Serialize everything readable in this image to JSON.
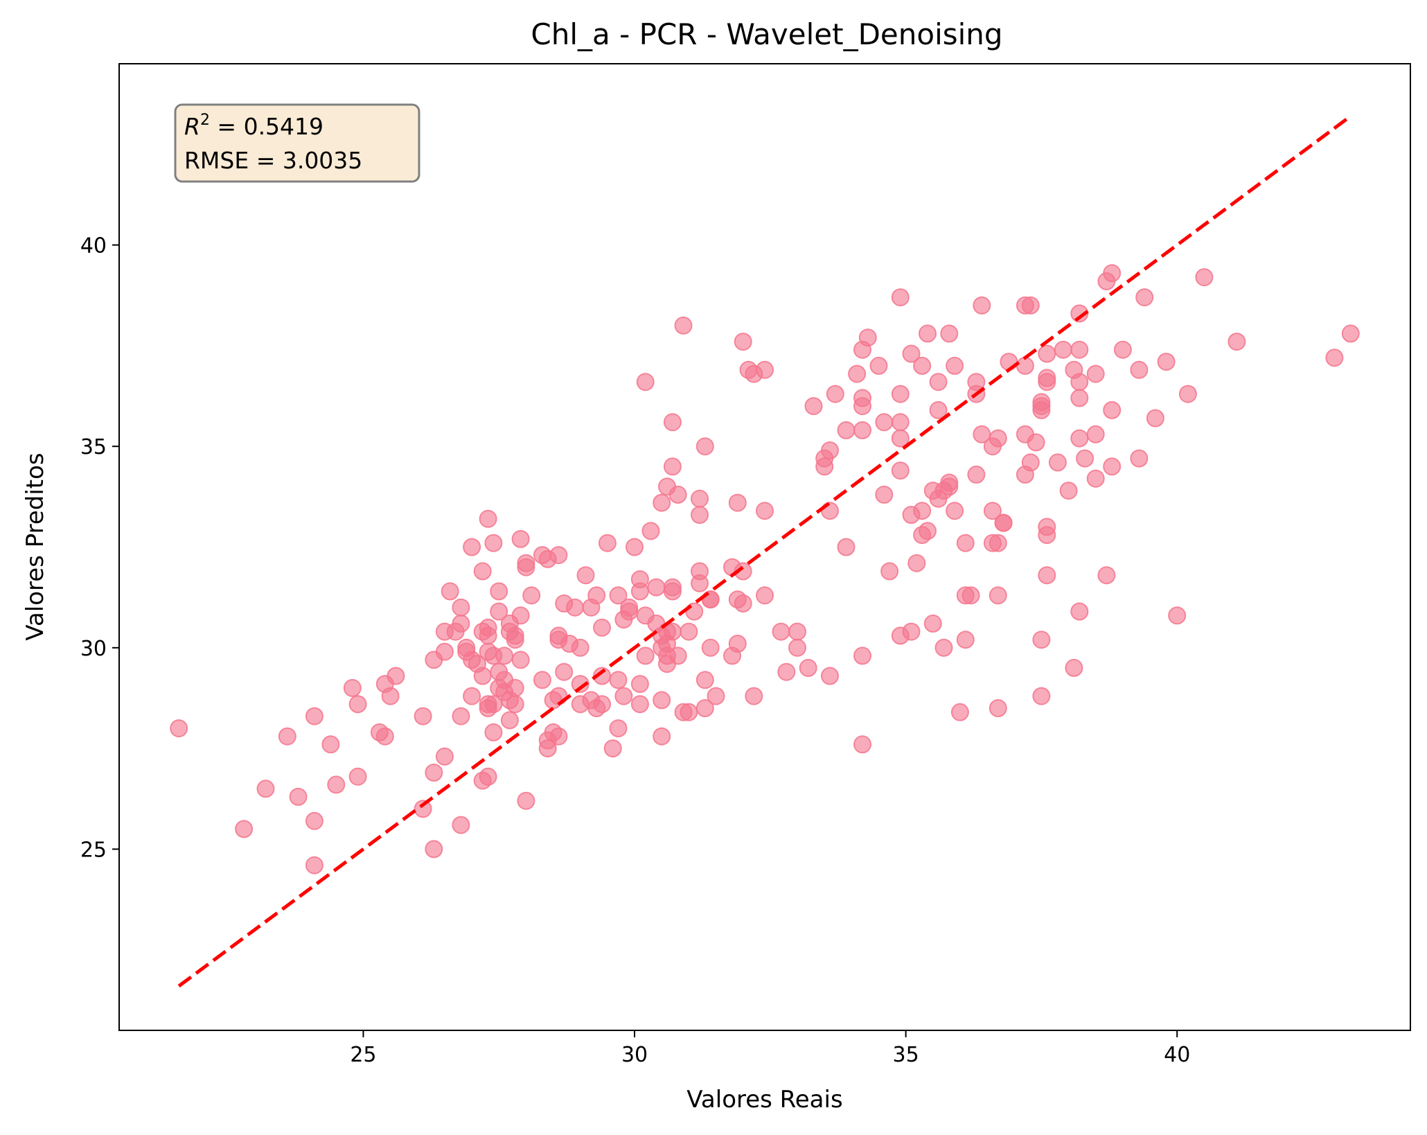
{
  "chart_data": {
    "type": "scatter",
    "title": "Chl_a - PCR - Wavelet_Denoising",
    "xlabel": "Valores Reais",
    "ylabel": "Valores Preditos",
    "xlim": [
      20.5,
      44.3
    ],
    "ylim": [
      20.5,
      44.5
    ],
    "xticks": [
      25,
      30,
      35,
      40
    ],
    "yticks": [
      25,
      30,
      35,
      40
    ],
    "grid": false,
    "point_color": "#f4758d",
    "reference_line": {
      "style": "dashed",
      "color": "#ff0000",
      "from": [
        21.6,
        21.6
      ],
      "to": [
        43.2,
        43.2
      ]
    },
    "stats": {
      "r2_label": "R",
      "r2_sup": "2",
      "r2_text": " = 0.5419",
      "rmse_text": "RMSE = 3.0035"
    },
    "points": [
      [
        21.6,
        28.0
      ],
      [
        22.8,
        25.5
      ],
      [
        23.2,
        26.5
      ],
      [
        23.6,
        27.8
      ],
      [
        23.8,
        26.3
      ],
      [
        24.1,
        28.3
      ],
      [
        24.1,
        25.7
      ],
      [
        24.1,
        24.6
      ],
      [
        24.4,
        27.6
      ],
      [
        24.5,
        26.6
      ],
      [
        24.8,
        29.0
      ],
      [
        24.9,
        28.6
      ],
      [
        24.9,
        26.8
      ],
      [
        25.3,
        27.9
      ],
      [
        25.4,
        27.8
      ],
      [
        25.4,
        29.1
      ],
      [
        25.5,
        28.8
      ],
      [
        25.6,
        29.3
      ],
      [
        26.1,
        28.3
      ],
      [
        26.1,
        26.0
      ],
      [
        26.3,
        25.0
      ],
      [
        26.3,
        26.9
      ],
      [
        26.3,
        29.7
      ],
      [
        26.5,
        27.3
      ],
      [
        26.5,
        29.9
      ],
      [
        26.5,
        30.4
      ],
      [
        26.6,
        31.4
      ],
      [
        26.7,
        30.4
      ],
      [
        26.8,
        31.0
      ],
      [
        26.8,
        30.6
      ],
      [
        26.8,
        28.3
      ],
      [
        26.8,
        25.6
      ],
      [
        26.9,
        29.9
      ],
      [
        26.9,
        30.0
      ],
      [
        27.0,
        29.7
      ],
      [
        27.0,
        32.5
      ],
      [
        27.0,
        28.8
      ],
      [
        27.1,
        29.6
      ],
      [
        27.2,
        29.3
      ],
      [
        27.2,
        30.4
      ],
      [
        27.2,
        31.9
      ],
      [
        27.2,
        26.7
      ],
      [
        27.3,
        26.8
      ],
      [
        27.3,
        28.6
      ],
      [
        27.3,
        30.3
      ],
      [
        27.3,
        30.5
      ],
      [
        27.3,
        29.9
      ],
      [
        27.3,
        28.5
      ],
      [
        27.3,
        33.2
      ],
      [
        27.4,
        32.6
      ],
      [
        27.4,
        27.9
      ],
      [
        27.4,
        29.8
      ],
      [
        27.4,
        28.6
      ],
      [
        27.5,
        29.0
      ],
      [
        27.5,
        29.4
      ],
      [
        27.5,
        30.9
      ],
      [
        27.5,
        31.4
      ],
      [
        27.6,
        29.8
      ],
      [
        27.6,
        29.2
      ],
      [
        27.6,
        28.9
      ],
      [
        27.7,
        30.4
      ],
      [
        27.7,
        30.6
      ],
      [
        27.7,
        28.7
      ],
      [
        27.7,
        28.2
      ],
      [
        27.8,
        30.2
      ],
      [
        27.8,
        30.3
      ],
      [
        27.8,
        29.0
      ],
      [
        27.8,
        28.6
      ],
      [
        27.9,
        29.7
      ],
      [
        27.9,
        30.8
      ],
      [
        27.9,
        32.7
      ],
      [
        28.0,
        32.1
      ],
      [
        28.0,
        32.0
      ],
      [
        28.0,
        26.2
      ],
      [
        28.1,
        31.3
      ],
      [
        28.3,
        32.3
      ],
      [
        28.3,
        29.2
      ],
      [
        28.4,
        27.5
      ],
      [
        28.4,
        27.7
      ],
      [
        28.4,
        32.2
      ],
      [
        28.5,
        28.7
      ],
      [
        28.5,
        27.9
      ],
      [
        28.6,
        30.3
      ],
      [
        28.6,
        28.8
      ],
      [
        28.6,
        32.3
      ],
      [
        28.6,
        30.2
      ],
      [
        28.6,
        27.8
      ],
      [
        28.7,
        29.4
      ],
      [
        28.7,
        31.1
      ],
      [
        28.8,
        30.1
      ],
      [
        28.9,
        31.0
      ],
      [
        29.0,
        28.6
      ],
      [
        29.0,
        29.1
      ],
      [
        29.0,
        30.0
      ],
      [
        29.1,
        31.8
      ],
      [
        29.2,
        31.0
      ],
      [
        29.2,
        28.7
      ],
      [
        29.3,
        28.5
      ],
      [
        29.3,
        31.3
      ],
      [
        29.4,
        30.5
      ],
      [
        29.4,
        29.3
      ],
      [
        29.4,
        28.6
      ],
      [
        29.5,
        32.6
      ],
      [
        29.6,
        27.5
      ],
      [
        29.7,
        28.0
      ],
      [
        29.7,
        29.2
      ],
      [
        29.7,
        31.3
      ],
      [
        29.8,
        28.8
      ],
      [
        29.8,
        30.7
      ],
      [
        29.9,
        31.0
      ],
      [
        29.9,
        30.9
      ],
      [
        30.0,
        32.5
      ],
      [
        30.1,
        31.7
      ],
      [
        30.1,
        31.4
      ],
      [
        30.1,
        28.6
      ],
      [
        30.1,
        29.1
      ],
      [
        30.2,
        29.8
      ],
      [
        30.2,
        30.8
      ],
      [
        30.2,
        36.6
      ],
      [
        30.3,
        32.9
      ],
      [
        30.4,
        30.6
      ],
      [
        30.4,
        31.5
      ],
      [
        30.5,
        27.8
      ],
      [
        30.5,
        28.7
      ],
      [
        30.5,
        30.0
      ],
      [
        30.5,
        30.3
      ],
      [
        30.5,
        33.6
      ],
      [
        30.6,
        34.0
      ],
      [
        30.6,
        29.8
      ],
      [
        30.6,
        30.4
      ],
      [
        30.6,
        29.6
      ],
      [
        30.6,
        30.1
      ],
      [
        30.7,
        31.4
      ],
      [
        30.7,
        30.4
      ],
      [
        30.7,
        31.5
      ],
      [
        30.7,
        34.5
      ],
      [
        30.7,
        35.6
      ],
      [
        30.8,
        29.8
      ],
      [
        30.8,
        33.8
      ],
      [
        30.9,
        38.0
      ],
      [
        30.9,
        28.4
      ],
      [
        31.0,
        28.4
      ],
      [
        31.0,
        30.4
      ],
      [
        31.1,
        30.9
      ],
      [
        31.2,
        31.6
      ],
      [
        31.2,
        31.9
      ],
      [
        31.2,
        33.3
      ],
      [
        31.2,
        33.7
      ],
      [
        31.3,
        35.0
      ],
      [
        31.3,
        28.5
      ],
      [
        31.3,
        29.2
      ],
      [
        31.4,
        30.0
      ],
      [
        31.4,
        31.2
      ],
      [
        31.4,
        31.2
      ],
      [
        31.5,
        28.8
      ],
      [
        31.8,
        32.0
      ],
      [
        31.8,
        29.8
      ],
      [
        31.9,
        31.2
      ],
      [
        31.9,
        30.1
      ],
      [
        31.9,
        33.6
      ],
      [
        32.0,
        31.1
      ],
      [
        32.0,
        31.9
      ],
      [
        32.0,
        37.6
      ],
      [
        32.1,
        36.9
      ],
      [
        32.2,
        36.8
      ],
      [
        32.2,
        28.8
      ],
      [
        32.4,
        33.4
      ],
      [
        32.4,
        31.3
      ],
      [
        32.4,
        36.9
      ],
      [
        32.7,
        30.4
      ],
      [
        32.8,
        29.4
      ],
      [
        33.0,
        30.0
      ],
      [
        33.0,
        30.4
      ],
      [
        33.2,
        29.5
      ],
      [
        33.3,
        36.0
      ],
      [
        33.5,
        34.5
      ],
      [
        33.5,
        34.7
      ],
      [
        33.6,
        34.9
      ],
      [
        33.6,
        33.4
      ],
      [
        33.6,
        29.3
      ],
      [
        33.7,
        36.3
      ],
      [
        33.9,
        35.4
      ],
      [
        33.9,
        32.5
      ],
      [
        34.1,
        36.8
      ],
      [
        34.2,
        37.4
      ],
      [
        34.2,
        36.0
      ],
      [
        34.2,
        36.2
      ],
      [
        34.2,
        35.4
      ],
      [
        34.2,
        29.8
      ],
      [
        34.2,
        27.6
      ],
      [
        34.3,
        37.7
      ],
      [
        34.5,
        37.0
      ],
      [
        34.6,
        35.6
      ],
      [
        34.6,
        33.8
      ],
      [
        34.7,
        31.9
      ],
      [
        34.9,
        30.3
      ],
      [
        34.9,
        38.7
      ],
      [
        34.9,
        36.3
      ],
      [
        34.9,
        35.6
      ],
      [
        34.9,
        35.2
      ],
      [
        34.9,
        34.4
      ],
      [
        35.1,
        37.3
      ],
      [
        35.1,
        33.3
      ],
      [
        35.1,
        30.4
      ],
      [
        35.2,
        32.1
      ],
      [
        35.3,
        33.4
      ],
      [
        35.3,
        32.8
      ],
      [
        35.3,
        37.0
      ],
      [
        35.4,
        32.9
      ],
      [
        35.4,
        37.8
      ],
      [
        35.5,
        33.9
      ],
      [
        35.5,
        30.6
      ],
      [
        35.6,
        33.7
      ],
      [
        35.6,
        35.9
      ],
      [
        35.6,
        36.6
      ],
      [
        35.7,
        30.0
      ],
      [
        35.7,
        33.9
      ],
      [
        35.8,
        34.0
      ],
      [
        35.8,
        37.8
      ],
      [
        35.8,
        34.1
      ],
      [
        35.9,
        33.4
      ],
      [
        35.9,
        37.0
      ],
      [
        36.0,
        28.4
      ],
      [
        36.1,
        30.2
      ],
      [
        36.1,
        31.3
      ],
      [
        36.1,
        32.6
      ],
      [
        36.2,
        31.3
      ],
      [
        36.3,
        34.3
      ],
      [
        36.3,
        36.3
      ],
      [
        36.3,
        36.6
      ],
      [
        36.4,
        38.5
      ],
      [
        36.4,
        35.3
      ],
      [
        36.6,
        35.0
      ],
      [
        36.6,
        32.6
      ],
      [
        36.6,
        33.4
      ],
      [
        36.7,
        35.2
      ],
      [
        36.7,
        28.5
      ],
      [
        36.7,
        31.3
      ],
      [
        36.7,
        32.6
      ],
      [
        36.8,
        33.1
      ],
      [
        36.8,
        33.1
      ],
      [
        36.9,
        37.1
      ],
      [
        37.2,
        38.5
      ],
      [
        37.2,
        37.0
      ],
      [
        37.2,
        34.3
      ],
      [
        37.2,
        35.3
      ],
      [
        37.3,
        34.6
      ],
      [
        37.3,
        38.5
      ],
      [
        37.4,
        35.1
      ],
      [
        37.5,
        30.2
      ],
      [
        37.5,
        28.8
      ],
      [
        37.5,
        36.1
      ],
      [
        37.5,
        35.9
      ],
      [
        37.5,
        36.0
      ],
      [
        37.6,
        31.8
      ],
      [
        37.6,
        32.8
      ],
      [
        37.6,
        33.0
      ],
      [
        37.6,
        36.7
      ],
      [
        37.6,
        36.6
      ],
      [
        37.6,
        37.3
      ],
      [
        37.8,
        34.6
      ],
      [
        37.9,
        37.4
      ],
      [
        38.0,
        33.9
      ],
      [
        38.1,
        36.9
      ],
      [
        38.1,
        29.5
      ],
      [
        38.2,
        30.9
      ],
      [
        38.2,
        36.2
      ],
      [
        38.2,
        35.2
      ],
      [
        38.2,
        36.6
      ],
      [
        38.2,
        38.3
      ],
      [
        38.2,
        37.4
      ],
      [
        38.3,
        34.7
      ],
      [
        38.5,
        35.3
      ],
      [
        38.5,
        34.2
      ],
      [
        38.5,
        36.8
      ],
      [
        38.7,
        31.8
      ],
      [
        38.7,
        39.1
      ],
      [
        38.8,
        39.3
      ],
      [
        38.8,
        34.5
      ],
      [
        38.8,
        35.9
      ],
      [
        39.0,
        37.4
      ],
      [
        39.3,
        34.7
      ],
      [
        39.3,
        36.9
      ],
      [
        39.4,
        38.7
      ],
      [
        39.6,
        35.7
      ],
      [
        39.8,
        37.1
      ],
      [
        40.0,
        30.8
      ],
      [
        40.2,
        36.3
      ],
      [
        40.5,
        39.2
      ],
      [
        41.1,
        37.6
      ],
      [
        42.9,
        37.2
      ],
      [
        43.2,
        37.8
      ]
    ]
  }
}
